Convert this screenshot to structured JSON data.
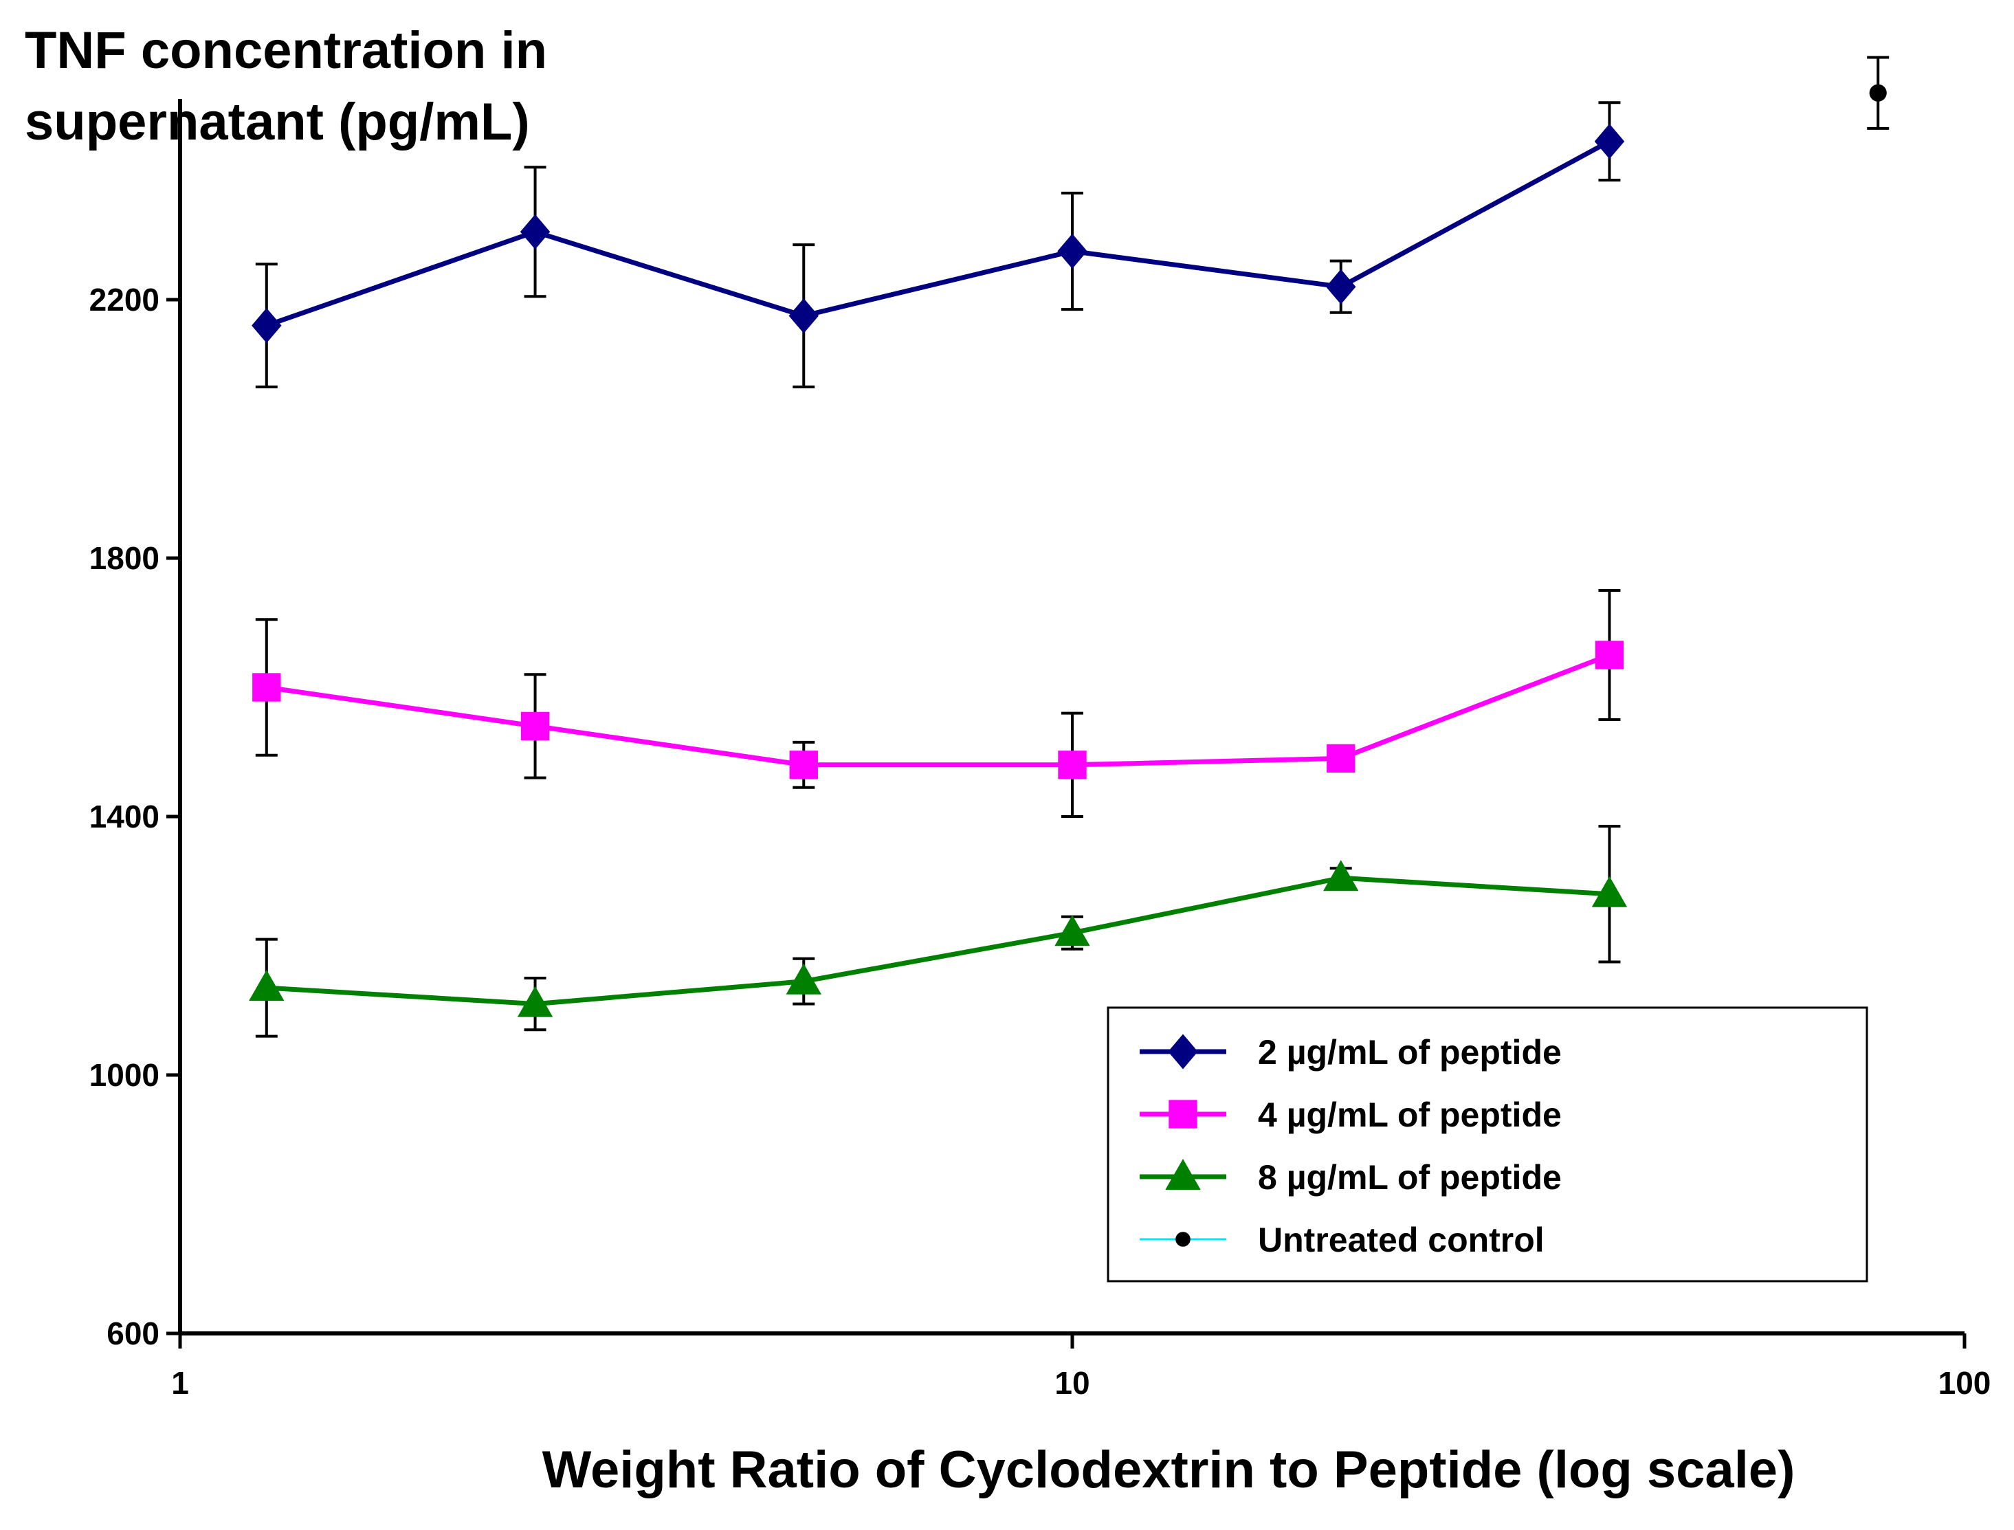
{
  "chart_data": {
    "type": "line",
    "title": "",
    "ylabel_lines": [
      "TNF concentration in",
      "supernatant (pg/mL)"
    ],
    "xlabel": "Weight Ratio of Cyclodextrin to Peptide (log scale)",
    "xscale": "log",
    "xlim": [
      1,
      100
    ],
    "ylim": [
      600,
      2500
    ],
    "x_ticks": [
      1,
      10,
      100
    ],
    "x_tick_labels": [
      "1",
      "10",
      "100"
    ],
    "y_ticks": [
      600,
      1000,
      1400,
      1800,
      2200
    ],
    "y_tick_labels": [
      "600",
      "1000",
      "1400",
      "1800",
      "2200"
    ],
    "grid": false,
    "legend_position": "bottom-right",
    "series": [
      {
        "name": "2 µg/mL of peptide",
        "color": "#000080",
        "marker": "diamond",
        "x": [
          1.25,
          2.5,
          5,
          10,
          20,
          40
        ],
        "values": [
          2160,
          2305,
          2175,
          2275,
          2220,
          2445
        ],
        "errors": [
          95,
          100,
          110,
          90,
          40,
          60
        ]
      },
      {
        "name": "4 µg/mL of peptide",
        "color": "#ff00ff",
        "marker": "square",
        "x": [
          1.25,
          2.5,
          5,
          10,
          20,
          40
        ],
        "values": [
          1600,
          1540,
          1480,
          1480,
          1490,
          1650
        ],
        "errors": [
          105,
          80,
          35,
          80,
          10,
          100
        ]
      },
      {
        "name": "8 µg/mL of peptide",
        "color": "#008000",
        "marker": "triangle",
        "x": [
          1.25,
          2.5,
          5,
          10,
          20,
          40
        ],
        "values": [
          1135,
          1110,
          1145,
          1220,
          1305,
          1280
        ],
        "errors": [
          75,
          40,
          35,
          25,
          15,
          105
        ]
      },
      {
        "name": "Untreated control",
        "color": "#000000",
        "line_color": "#00e5ff",
        "marker": "circle",
        "x": [
          80
        ],
        "values": [
          2520
        ],
        "errors": [
          55
        ]
      }
    ]
  }
}
